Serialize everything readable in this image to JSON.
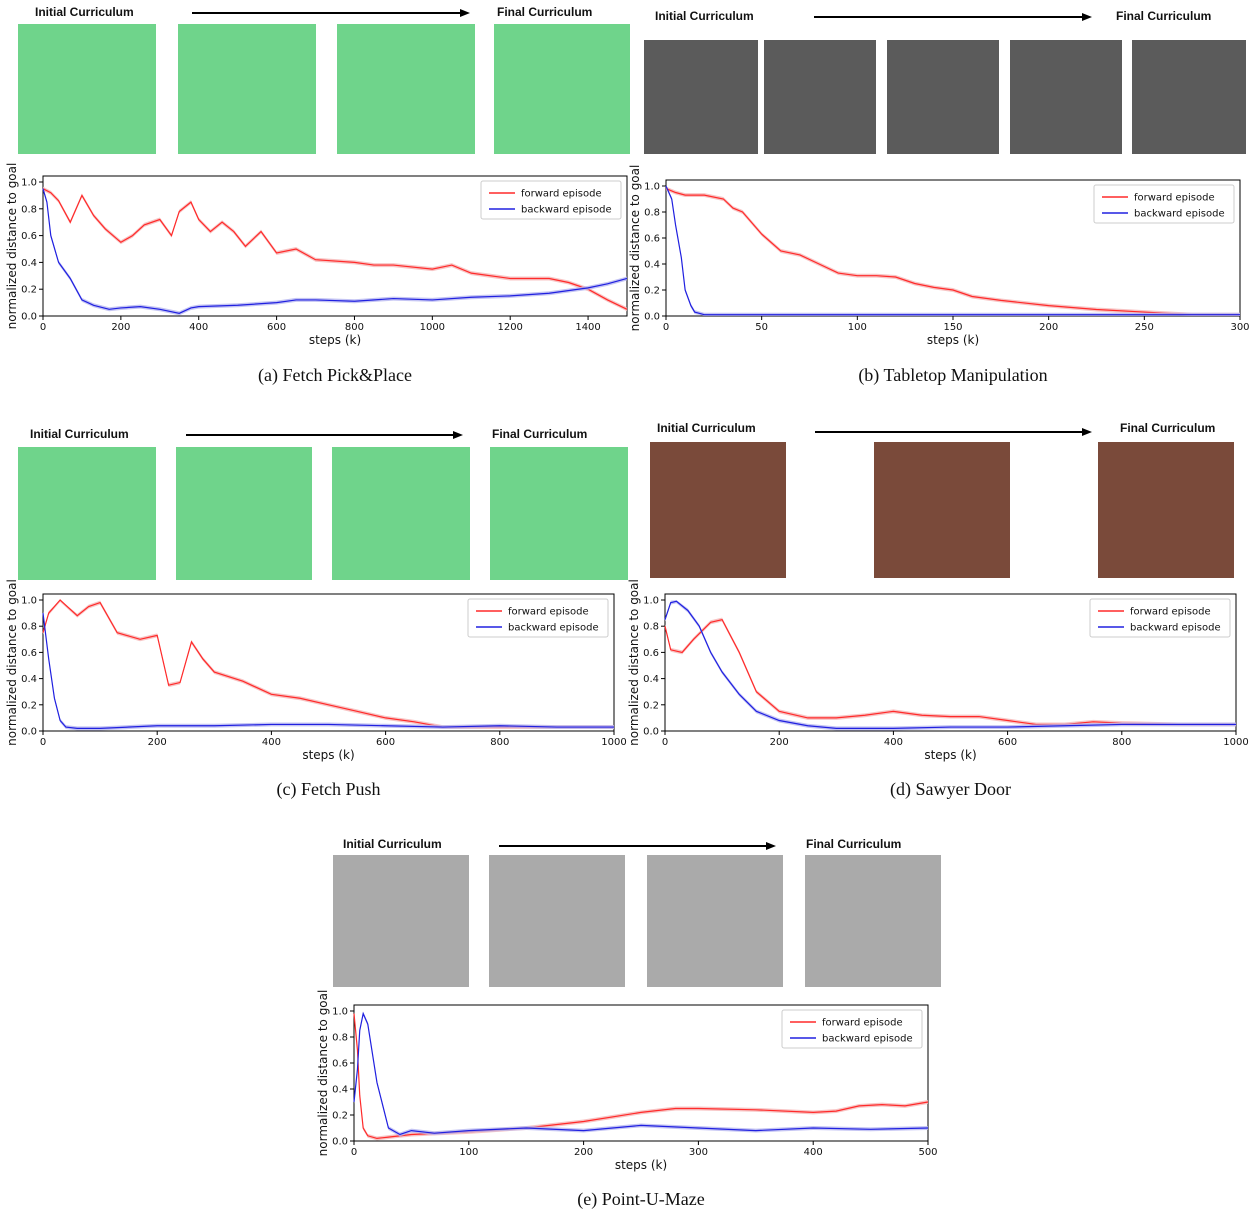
{
  "strip": {
    "initial": "Initial Curriculum",
    "final": "Final Curriculum"
  },
  "chart_data": [
    {
      "type": "line",
      "caption": "(a) Fetch Pick&Place",
      "xlabel": "steps (k)",
      "ylabel": "normalized distance to goal",
      "xlim": [
        0,
        1500
      ],
      "ylim": [
        0,
        1.0
      ],
      "xticks": [
        0,
        200,
        400,
        600,
        800,
        1000,
        1200,
        1400
      ],
      "yticks": [
        0.0,
        0.2,
        0.4,
        0.6,
        0.8,
        1.0
      ],
      "legend_position": "top-right",
      "series": [
        {
          "name": "forward episode",
          "color": "#ff2a2a",
          "x": [
            0,
            20,
            40,
            70,
            100,
            130,
            160,
            200,
            230,
            260,
            300,
            330,
            350,
            380,
            400,
            430,
            460,
            490,
            520,
            560,
            600,
            650,
            700,
            800,
            850,
            900,
            1000,
            1050,
            1100,
            1200,
            1300,
            1350,
            1400,
            1450,
            1500
          ],
          "y": [
            0.95,
            0.92,
            0.86,
            0.7,
            0.9,
            0.75,
            0.65,
            0.55,
            0.6,
            0.68,
            0.72,
            0.6,
            0.78,
            0.85,
            0.72,
            0.63,
            0.7,
            0.63,
            0.52,
            0.63,
            0.47,
            0.5,
            0.42,
            0.4,
            0.38,
            0.38,
            0.35,
            0.38,
            0.32,
            0.28,
            0.28,
            0.25,
            0.2,
            0.12,
            0.05
          ]
        },
        {
          "name": "backward episode",
          "color": "#2020e0",
          "x": [
            0,
            10,
            20,
            40,
            70,
            100,
            130,
            170,
            200,
            250,
            300,
            350,
            380,
            400,
            500,
            600,
            650,
            700,
            800,
            900,
            1000,
            1100,
            1200,
            1300,
            1400,
            1450,
            1500
          ],
          "y": [
            0.95,
            0.85,
            0.6,
            0.4,
            0.28,
            0.12,
            0.08,
            0.05,
            0.06,
            0.07,
            0.05,
            0.02,
            0.06,
            0.07,
            0.08,
            0.1,
            0.12,
            0.12,
            0.11,
            0.13,
            0.12,
            0.14,
            0.15,
            0.17,
            0.21,
            0.24,
            0.28
          ]
        }
      ]
    },
    {
      "type": "line",
      "caption": "(b) Tabletop Manipulation",
      "xlabel": "steps (k)",
      "ylabel": "normalized distance to goal",
      "xlim": [
        0,
        300
      ],
      "ylim": [
        0,
        1.0
      ],
      "xticks": [
        0,
        50,
        100,
        150,
        200,
        250,
        300
      ],
      "yticks": [
        0.0,
        0.2,
        0.4,
        0.6,
        0.8,
        1.0
      ],
      "legend_position": "top-right",
      "series": [
        {
          "name": "forward episode",
          "color": "#ff2a2a",
          "x": [
            0,
            5,
            10,
            20,
            30,
            35,
            40,
            50,
            60,
            70,
            80,
            90,
            100,
            110,
            120,
            130,
            140,
            150,
            160,
            175,
            200,
            225,
            250,
            275,
            300
          ],
          "y": [
            0.98,
            0.95,
            0.93,
            0.93,
            0.9,
            0.83,
            0.8,
            0.63,
            0.5,
            0.47,
            0.4,
            0.33,
            0.31,
            0.31,
            0.3,
            0.25,
            0.22,
            0.2,
            0.15,
            0.12,
            0.08,
            0.05,
            0.03,
            0.01,
            0.01
          ]
        },
        {
          "name": "backward episode",
          "color": "#2020e0",
          "x": [
            0,
            3,
            5,
            8,
            10,
            13,
            15,
            20,
            30,
            50,
            100,
            150,
            200,
            250,
            300
          ],
          "y": [
            1.0,
            0.9,
            0.7,
            0.45,
            0.2,
            0.08,
            0.03,
            0.01,
            0.01,
            0.01,
            0.01,
            0.01,
            0.01,
            0.01,
            0.01
          ]
        }
      ]
    },
    {
      "type": "line",
      "caption": "(c) Fetch Push",
      "xlabel": "steps (k)",
      "ylabel": "normalized distance to goal",
      "xlim": [
        0,
        1000
      ],
      "ylim": [
        0,
        1.0
      ],
      "xticks": [
        0,
        200,
        400,
        600,
        800,
        1000
      ],
      "yticks": [
        0.0,
        0.2,
        0.4,
        0.6,
        0.8,
        1.0
      ],
      "legend_position": "top-right",
      "series": [
        {
          "name": "forward episode",
          "color": "#ff2a2a",
          "x": [
            0,
            10,
            30,
            60,
            80,
            100,
            130,
            170,
            200,
            220,
            240,
            260,
            280,
            300,
            350,
            400,
            450,
            500,
            550,
            600,
            650,
            700,
            800,
            900,
            1000
          ],
          "y": [
            0.75,
            0.9,
            1.0,
            0.88,
            0.95,
            0.98,
            0.75,
            0.7,
            0.73,
            0.35,
            0.37,
            0.68,
            0.55,
            0.45,
            0.38,
            0.28,
            0.25,
            0.2,
            0.15,
            0.1,
            0.07,
            0.03,
            0.03,
            0.03,
            0.03
          ]
        },
        {
          "name": "backward episode",
          "color": "#2020e0",
          "x": [
            0,
            10,
            20,
            30,
            40,
            60,
            100,
            200,
            300,
            400,
            500,
            600,
            700,
            800,
            900,
            1000
          ],
          "y": [
            0.9,
            0.55,
            0.25,
            0.08,
            0.03,
            0.02,
            0.02,
            0.04,
            0.04,
            0.05,
            0.05,
            0.04,
            0.03,
            0.04,
            0.03,
            0.03
          ]
        }
      ]
    },
    {
      "type": "line",
      "caption": "(d) Sawyer Door",
      "xlabel": "steps (k)",
      "ylabel": "normalized distance to goal",
      "xlim": [
        0,
        1000
      ],
      "ylim": [
        0,
        1.0
      ],
      "xticks": [
        0,
        200,
        400,
        600,
        800,
        1000
      ],
      "yticks": [
        0.0,
        0.2,
        0.4,
        0.6,
        0.8,
        1.0
      ],
      "legend_position": "top-right",
      "series": [
        {
          "name": "forward episode",
          "color": "#ff2a2a",
          "x": [
            0,
            10,
            30,
            50,
            80,
            100,
            130,
            160,
            200,
            250,
            300,
            350,
            400,
            450,
            500,
            550,
            600,
            650,
            700,
            750,
            800,
            900,
            1000
          ],
          "y": [
            0.8,
            0.62,
            0.6,
            0.7,
            0.83,
            0.85,
            0.6,
            0.3,
            0.15,
            0.1,
            0.1,
            0.12,
            0.15,
            0.12,
            0.11,
            0.11,
            0.08,
            0.05,
            0.05,
            0.07,
            0.06,
            0.05,
            0.05
          ]
        },
        {
          "name": "backward episode",
          "color": "#2020e0",
          "x": [
            0,
            10,
            20,
            40,
            60,
            80,
            100,
            130,
            160,
            200,
            250,
            300,
            400,
            500,
            600,
            700,
            800,
            900,
            1000
          ],
          "y": [
            0.85,
            0.98,
            0.99,
            0.92,
            0.8,
            0.6,
            0.45,
            0.28,
            0.15,
            0.08,
            0.04,
            0.02,
            0.02,
            0.03,
            0.03,
            0.04,
            0.05,
            0.05,
            0.05
          ]
        }
      ]
    },
    {
      "type": "line",
      "caption": "(e) Point-U-Maze",
      "xlabel": "steps (k)",
      "ylabel": "normalized distance to goal",
      "xlim": [
        0,
        500
      ],
      "ylim": [
        0,
        1.0
      ],
      "xticks": [
        0,
        100,
        200,
        300,
        400,
        500
      ],
      "yticks": [
        0.0,
        0.2,
        0.4,
        0.6,
        0.8,
        1.0
      ],
      "legend_position": "top-right",
      "series": [
        {
          "name": "forward episode",
          "color": "#ff2a2a",
          "x": [
            0,
            3,
            5,
            8,
            12,
            20,
            30,
            50,
            100,
            150,
            200,
            250,
            280,
            300,
            350,
            400,
            420,
            440,
            460,
            480,
            500
          ],
          "y": [
            0.98,
            0.7,
            0.35,
            0.1,
            0.04,
            0.02,
            0.03,
            0.05,
            0.07,
            0.1,
            0.15,
            0.22,
            0.25,
            0.25,
            0.24,
            0.22,
            0.23,
            0.27,
            0.28,
            0.27,
            0.3
          ]
        },
        {
          "name": "backward episode",
          "color": "#2020e0",
          "x": [
            0,
            3,
            5,
            8,
            12,
            20,
            30,
            40,
            50,
            70,
            100,
            150,
            200,
            250,
            300,
            350,
            400,
            450,
            500
          ],
          "y": [
            0.3,
            0.55,
            0.85,
            0.98,
            0.9,
            0.45,
            0.1,
            0.05,
            0.08,
            0.06,
            0.08,
            0.1,
            0.08,
            0.12,
            0.1,
            0.08,
            0.1,
            0.09,
            0.1
          ]
        }
      ]
    }
  ]
}
